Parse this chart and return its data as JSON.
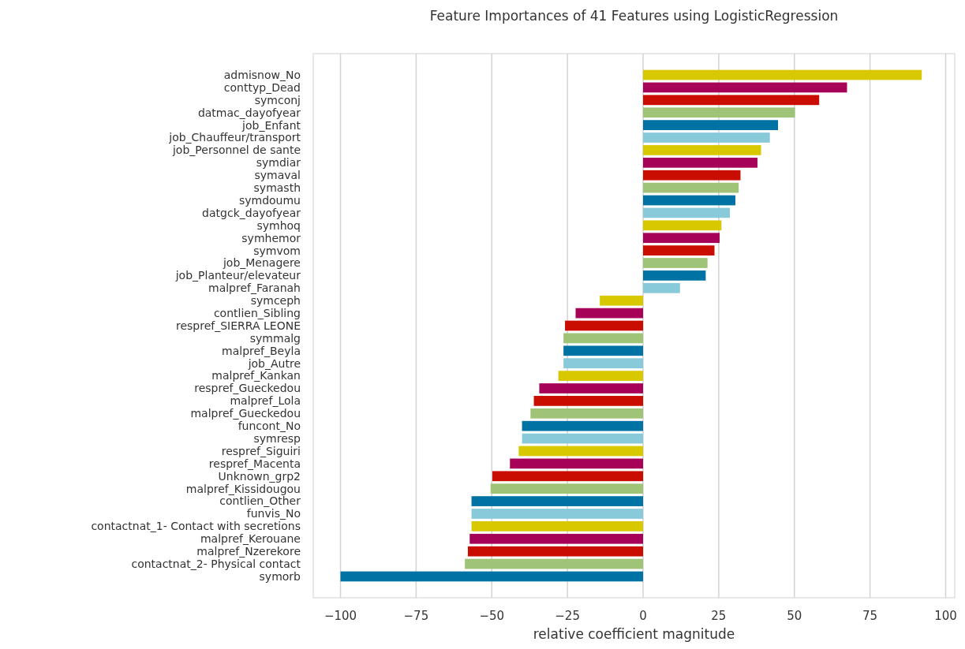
{
  "chart_data": {
    "type": "bar",
    "orientation": "horizontal",
    "title": "Feature Importances of 41 Features using LogisticRegression",
    "xlabel": "relative coefficient magnitude",
    "categories": [
      "admisnow_No",
      "conttyp_Dead",
      "symconj",
      "datmac_dayofyear",
      "job_Enfant",
      "job_Chauffeur/transport",
      "job_Personnel de sante",
      "symdiar",
      "symaval",
      "symasth",
      "symdoumu",
      "datgck_dayofyear",
      "symhoq",
      "symhemor",
      "symvom",
      "job_Menagere",
      "job_Planteur/elevateur",
      "malpref_Faranah",
      "symceph",
      "contlien_Sibling",
      "respref_SIERRA LEONE",
      "symmalg",
      "malpref_Beyla",
      "job_Autre",
      "malpref_Kankan",
      "respref_Gueckedou",
      "malpref_Lola",
      "malpref_Gueckedou",
      "funcont_No",
      "symresp",
      "respref_Siguiri",
      "respref_Macenta",
      "Unknown_grp2",
      "malpref_Kissidougou",
      "contlien_Other",
      "funvis_No",
      "contactnat_1- Contact with secretions",
      "malpref_Kerouane",
      "malpref_Nzerekore",
      "contactnat_2- Physical contact",
      "symorb"
    ],
    "values": [
      92.1,
      67.4,
      58.2,
      50.2,
      44.6,
      41.9,
      39.0,
      37.8,
      32.2,
      31.6,
      30.5,
      28.7,
      25.9,
      25.3,
      23.6,
      21.3,
      20.7,
      12.2,
      -14.3,
      -22.3,
      -25.8,
      -26.3,
      -26.3,
      -26.3,
      -28.0,
      -34.3,
      -36.1,
      -37.2,
      -40.0,
      -40.0,
      -41.1,
      -44.0,
      -49.8,
      -50.4,
      -56.7,
      -56.7,
      -56.7,
      -57.3,
      -57.9,
      -58.9,
      -100
    ],
    "colors": [
      "#d8c800",
      "#a50258",
      "#c90d00",
      "#9fc377",
      "#0072a3",
      "#88cada",
      "#d8c800",
      "#a50258",
      "#c90d00",
      "#9fc377",
      "#0072a3",
      "#88cada",
      "#d8c800",
      "#a50258",
      "#c90d00",
      "#9fc377",
      "#0072a3",
      "#88cada",
      "#d8c800",
      "#a50258",
      "#c90d00",
      "#9fc377",
      "#0072a3",
      "#88cada",
      "#d8c800",
      "#a50258",
      "#c90d00",
      "#9fc377",
      "#0072a3",
      "#88cada",
      "#d8c800",
      "#a50258",
      "#c90d00",
      "#9fc377",
      "#0072a3",
      "#88cada",
      "#d8c800",
      "#a50258",
      "#c90d00",
      "#9fc377",
      "#0072a3"
    ],
    "xlim": [
      -109,
      103
    ],
    "xticks": [
      {
        "value": -100,
        "label": "−100"
      },
      {
        "value": -75,
        "label": "−75"
      },
      {
        "value": -50,
        "label": "−50"
      },
      {
        "value": -25,
        "label": "−25"
      },
      0,
      25,
      50,
      75,
      100
    ],
    "grid": "x"
  }
}
